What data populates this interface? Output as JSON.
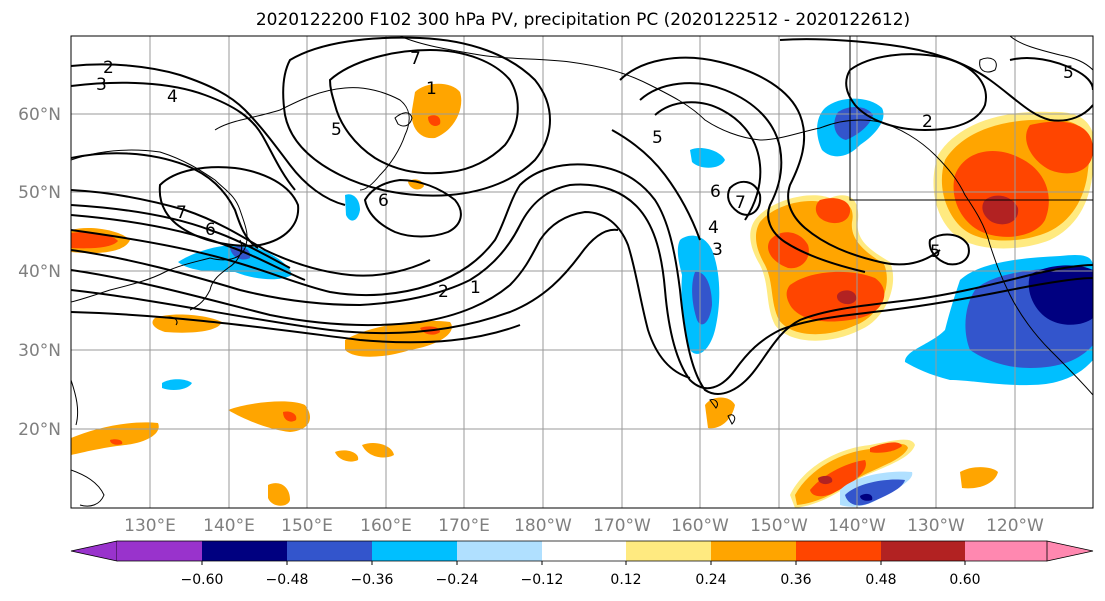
{
  "title": "2020122200 F102 300 hPa PV, precipitation PC (2020122512 - 2020122612)",
  "lat_ticks": [
    "60°N",
    "50°N",
    "40°N",
    "30°N",
    "20°N"
  ],
  "lon_ticks": [
    "130°E",
    "140°E",
    "150°E",
    "160°E",
    "170°E",
    "180°W",
    "170°W",
    "160°W",
    "150°W",
    "140°W",
    "130°W",
    "120°W"
  ],
  "contour_labels": [
    "2",
    "3",
    "4",
    "5",
    "6",
    "7",
    "1",
    "2",
    "1",
    "5",
    "6",
    "7",
    "4",
    "3",
    "2",
    "5",
    "5",
    "7",
    "6"
  ],
  "colorbar": {
    "ticks": [
      "−0.60",
      "−0.48",
      "−0.36",
      "−0.24",
      "−0.12",
      "0.12",
      "0.24",
      "0.36",
      "0.48",
      "0.60"
    ],
    "colors": [
      "#9933cc",
      "#000080",
      "#3355cc",
      "#00bfff",
      "#b0e0ff",
      "#ffffff",
      "#ffea80",
      "#ffa500",
      "#ff4500",
      "#b22222",
      "#ff88b0"
    ]
  },
  "colors": {
    "precip_pos_light": "#ffea80",
    "precip_pos": "#ffa500",
    "precip_pos_strong": "#ff4500",
    "precip_pos_max": "#b22222",
    "precip_neg_light": "#b0e0ff",
    "precip_neg": "#00bfff",
    "precip_neg_strong": "#3355cc",
    "precip_neg_max": "#000080"
  }
}
